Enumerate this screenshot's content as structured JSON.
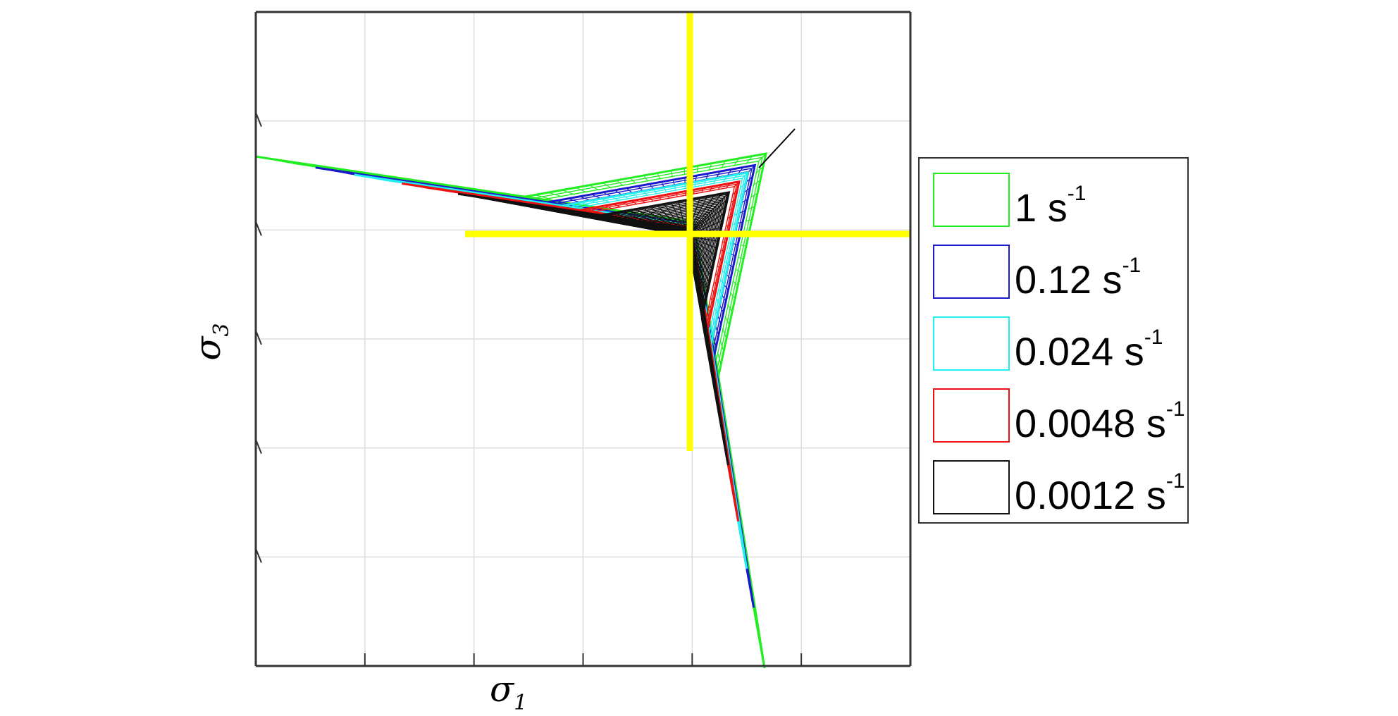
{
  "chart_data": {
    "type": "line",
    "title": "",
    "xlabel": {
      "main": "σ",
      "sub": "1"
    },
    "ylabel": {
      "main": "σ",
      "sub": "3"
    },
    "xticks": 6,
    "yticks": 6,
    "grid": true,
    "legend_position": "right",
    "colors": {
      "axis": "#333333",
      "grid": "#dddddd",
      "principal_axes": "#ffff00",
      "hydrostatic_line": "#000000"
    },
    "series": [
      {
        "name": "1 s-1",
        "label": "1 s",
        "sup": "-1",
        "color": "#22ee22",
        "scale": 1.0
      },
      {
        "name": "0.12 s-1",
        "label": "0.12 s",
        "sup": "-1",
        "color": "#1a1acc",
        "scale": 0.86
      },
      {
        "name": "0.024 s-1",
        "label": "0.024 s",
        "sup": "-1",
        "color": "#22eeee",
        "scale": 0.77
      },
      {
        "name": "0.0048 s-1",
        "label": "0.0048 s",
        "sup": "-1",
        "color": "#ee1111",
        "scale": 0.66
      },
      {
        "name": "0.0012 s-1",
        "label": "0.0012 s",
        "sup": "-1",
        "color": "#111111",
        "scale": 0.53
      }
    ]
  }
}
